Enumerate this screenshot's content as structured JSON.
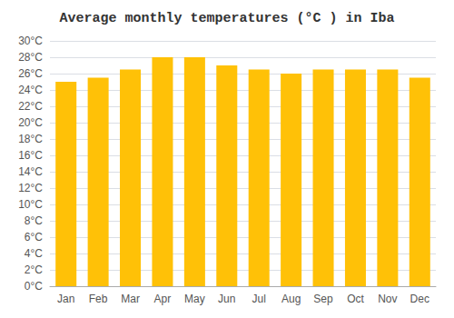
{
  "chart_data": {
    "type": "bar",
    "title": "Average monthly temperatures (°C ) in Iba",
    "categories": [
      "Jan",
      "Feb",
      "Mar",
      "Apr",
      "May",
      "Jun",
      "Jul",
      "Aug",
      "Sep",
      "Oct",
      "Nov",
      "Dec"
    ],
    "values": [
      25.0,
      25.5,
      26.5,
      28.0,
      28.0,
      27.0,
      26.5,
      26.0,
      26.5,
      26.5,
      26.5,
      25.5
    ],
    "color": "#FFC107",
    "ylim": [
      0,
      30
    ],
    "yticks": [
      {
        "value": 0,
        "label": "0°C"
      },
      {
        "value": 2,
        "label": "2°C"
      },
      {
        "value": 4,
        "label": "4°C"
      },
      {
        "value": 6,
        "label": "6°C"
      },
      {
        "value": 8,
        "label": "8°C"
      },
      {
        "value": 10,
        "label": "10°C"
      },
      {
        "value": 12,
        "label": "12°C"
      },
      {
        "value": 14,
        "label": "14°C"
      },
      {
        "value": 16,
        "label": "16°C"
      },
      {
        "value": 18,
        "label": "18°C"
      },
      {
        "value": 20,
        "label": "20°C"
      },
      {
        "value": 22,
        "label": "22°C"
      },
      {
        "value": 24,
        "label": "24°C"
      },
      {
        "value": 26,
        "label": "26°C"
      },
      {
        "value": 28,
        "label": "28°C"
      },
      {
        "value": 30,
        "label": "30°C"
      }
    ],
    "grid": true
  }
}
